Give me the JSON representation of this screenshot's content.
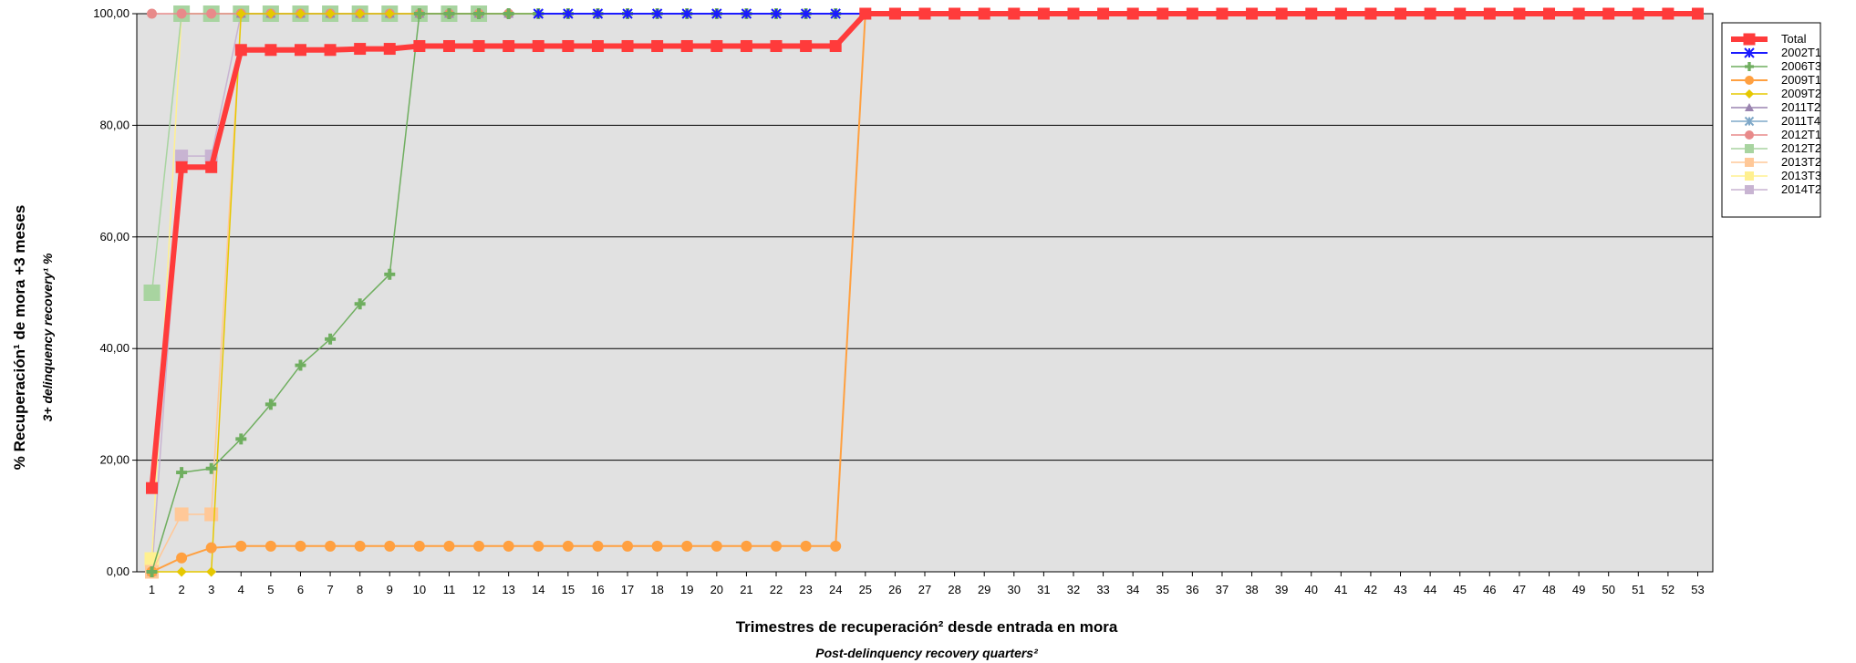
{
  "chart_data": {
    "type": "line",
    "ylabel": "% Recuperación¹ de mora +3 meses",
    "ylabel_secondary": "3+ delinquency recovery¹ %",
    "xlabel": "Trimestres de recuperación² desde entrada en mora",
    "xlabel_secondary": "Post-delinquency recovery quarters²",
    "ylim": [
      0,
      100
    ],
    "yticks": [
      "0,00",
      "20,00",
      "40,00",
      "60,00",
      "80,00",
      "100,00"
    ],
    "x": [
      1,
      2,
      3,
      4,
      5,
      6,
      7,
      8,
      9,
      10,
      11,
      12,
      13,
      14,
      15,
      16,
      17,
      18,
      19,
      20,
      21,
      22,
      23,
      24,
      25,
      26,
      27,
      28,
      29,
      30,
      31,
      32,
      33,
      34,
      35,
      36,
      37,
      38,
      39,
      40,
      41,
      42,
      43,
      44,
      45,
      46,
      47,
      48,
      49,
      50,
      51,
      52,
      53
    ],
    "grid": "horizontal",
    "legend_position": "right",
    "series": [
      {
        "name": "Total",
        "color": "#ff3b3b",
        "marker": "square",
        "width": 6,
        "marker_size": 13,
        "values": [
          15,
          72.5,
          72.5,
          93.5,
          93.5,
          93.5,
          93.5,
          93.7,
          93.7,
          94.2,
          94.2,
          94.2,
          94.2,
          94.2,
          94.2,
          94.2,
          94.2,
          94.2,
          94.2,
          94.2,
          94.2,
          94.2,
          94.2,
          94.2,
          100,
          100,
          100,
          100,
          100,
          100,
          100,
          100,
          100,
          100,
          100,
          100,
          100,
          100,
          100,
          100,
          100,
          100,
          100,
          100,
          100,
          100,
          100,
          100,
          100,
          100,
          100,
          100,
          100
        ]
      },
      {
        "name": "2002T1",
        "color": "#1a1aff",
        "marker": "star",
        "width": 2,
        "marker_size": 10,
        "values": [
          null,
          null,
          null,
          null,
          null,
          null,
          null,
          null,
          null,
          null,
          null,
          null,
          null,
          100,
          100,
          100,
          100,
          100,
          100,
          100,
          100,
          100,
          100,
          100,
          100,
          100,
          100,
          100,
          100,
          100,
          100,
          100,
          100,
          100,
          100,
          100,
          100,
          100,
          100,
          100,
          100,
          100,
          100,
          100,
          100,
          100,
          100,
          100,
          100,
          100,
          100,
          100,
          100
        ]
      },
      {
        "name": "2006T3",
        "color": "#6fae5f",
        "marker": "plus",
        "width": 1.5,
        "marker_size": 12,
        "values": [
          0,
          17.8,
          18.5,
          23.8,
          30,
          37,
          41.7,
          48,
          53.3,
          100,
          100,
          100,
          100,
          100,
          100,
          100,
          100,
          100,
          100,
          100,
          100,
          100,
          100,
          100,
          100,
          100,
          100,
          100,
          100,
          100,
          100,
          100,
          100,
          100,
          100,
          100,
          100,
          100,
          100,
          100,
          100,
          100,
          100,
          100,
          100,
          100,
          100,
          100,
          100,
          100,
          100,
          100,
          100
        ]
      },
      {
        "name": "2009T1",
        "color": "#ffa040",
        "marker": "circle",
        "width": 2,
        "marker_size": 12,
        "values": [
          0,
          2.5,
          4.3,
          4.6,
          4.6,
          4.6,
          4.6,
          4.6,
          4.6,
          4.6,
          4.6,
          4.6,
          4.6,
          4.6,
          4.6,
          4.6,
          4.6,
          4.6,
          4.6,
          4.6,
          4.6,
          4.6,
          4.6,
          4.6,
          100,
          100,
          100,
          100,
          100,
          100,
          100,
          100,
          100,
          100,
          100,
          100,
          100,
          100,
          100,
          100,
          100,
          100,
          100,
          100,
          100,
          100,
          100,
          100,
          100,
          100,
          100,
          100,
          100
        ]
      },
      {
        "name": "2009T2",
        "color": "#e6c800",
        "marker": "diamond",
        "width": 1.5,
        "marker_size": 11,
        "values": [
          0,
          0,
          0,
          100,
          100,
          100,
          100,
          100,
          100,
          100,
          100,
          100,
          100,
          100,
          100,
          100,
          100,
          100,
          100,
          100,
          100,
          100,
          100,
          100,
          100,
          100,
          100,
          100,
          100,
          100,
          100,
          100,
          100,
          100,
          100,
          100,
          100,
          100,
          100,
          100,
          100,
          100,
          100,
          100,
          100,
          100,
          100,
          100,
          100,
          100,
          100,
          100,
          100
        ]
      },
      {
        "name": "2011T2",
        "color": "#9a84b0",
        "marker": "triangle",
        "width": 1.5,
        "marker_size": 11,
        "values": [
          0,
          null,
          null,
          100,
          100,
          100,
          100,
          100,
          100,
          100,
          100,
          100,
          100,
          100,
          100,
          100,
          null,
          null,
          null,
          null,
          null,
          null,
          null,
          null,
          null,
          null,
          null,
          null,
          null,
          null,
          null,
          null,
          null,
          null,
          null,
          null,
          null,
          null,
          null,
          null,
          null,
          null,
          null,
          null,
          null,
          null,
          null,
          null,
          null,
          null,
          null,
          null,
          null
        ]
      },
      {
        "name": "2011T4",
        "color": "#7fa8c8",
        "marker": "star",
        "width": 1.5,
        "marker_size": 9,
        "values": [
          null,
          null,
          null,
          null,
          null,
          null,
          null,
          null,
          null,
          null,
          null,
          null,
          null,
          null,
          null,
          null,
          null,
          null,
          null,
          null,
          null,
          null,
          null,
          null,
          null,
          100,
          100,
          100,
          100,
          100,
          100,
          100,
          100,
          100,
          100,
          null,
          null,
          null,
          null,
          null,
          null,
          null,
          null,
          null,
          null,
          null,
          null,
          null,
          null,
          null,
          null,
          null,
          null
        ]
      },
      {
        "name": "2012T1",
        "color": "#e88a8a",
        "marker": "circle",
        "width": 1.5,
        "marker_size": 11,
        "values": [
          100,
          100,
          100,
          100,
          100,
          100,
          100,
          100,
          100,
          100,
          100,
          100,
          100,
          null,
          null,
          null,
          null,
          null,
          null,
          null,
          null,
          null,
          null,
          null,
          null,
          null,
          null,
          null,
          null,
          null,
          null,
          null,
          null,
          null,
          null,
          null,
          null,
          null,
          null,
          null,
          null,
          null,
          null,
          null,
          null,
          null,
          null,
          null,
          null,
          null,
          null,
          null,
          null
        ]
      },
      {
        "name": "2012T2",
        "color": "#a8d4a0",
        "marker": "square",
        "width": 1.5,
        "marker_size": 18,
        "values": [
          50,
          100,
          100,
          100,
          100,
          100,
          100,
          100,
          100,
          100,
          100,
          100,
          null,
          null,
          null,
          null,
          null,
          null,
          null,
          null,
          null,
          null,
          null,
          null,
          null,
          null,
          null,
          null,
          null,
          null,
          null,
          null,
          null,
          null,
          null,
          null,
          null,
          null,
          null,
          null,
          null,
          null,
          null,
          null,
          null,
          null,
          null,
          null,
          null,
          null,
          null,
          null,
          null
        ]
      },
      {
        "name": "2013T2",
        "color": "#ffc898",
        "marker": "square",
        "width": 1.5,
        "marker_size": 15,
        "values": [
          0,
          10.3,
          10.3,
          100,
          100,
          100,
          100,
          100,
          null,
          null,
          null,
          null,
          null,
          null,
          null,
          null,
          null,
          null,
          null,
          null,
          null,
          null,
          null,
          null,
          null,
          null,
          null,
          null,
          null,
          null,
          null,
          null,
          null,
          null,
          null,
          null,
          null,
          null,
          null,
          null,
          null,
          null,
          null,
          null,
          null,
          null,
          null,
          null,
          null,
          null,
          null,
          null,
          null
        ]
      },
      {
        "name": "2013T3",
        "color": "#fff090",
        "marker": "square",
        "width": 1.5,
        "marker_size": 16,
        "values": [
          2.2,
          100,
          100,
          100,
          100,
          100,
          100,
          null,
          null,
          null,
          null,
          null,
          null,
          null,
          null,
          null,
          null,
          null,
          null,
          null,
          null,
          null,
          null,
          null,
          null,
          null,
          null,
          null,
          null,
          null,
          null,
          null,
          null,
          null,
          null,
          null,
          null,
          null,
          null,
          null,
          null,
          null,
          null,
          null,
          null,
          null,
          null,
          null,
          null,
          null,
          null,
          null,
          null
        ]
      },
      {
        "name": "2014T2",
        "color": "#c8b4d2",
        "marker": "square",
        "width": 1.5,
        "marker_size": 14,
        "values": [
          0,
          74.5,
          74.5,
          100,
          null,
          null,
          null,
          null,
          null,
          null,
          null,
          null,
          null,
          null,
          null,
          null,
          null,
          null,
          null,
          null,
          null,
          null,
          null,
          null,
          null,
          null,
          null,
          null,
          null,
          null,
          null,
          null,
          null,
          null,
          null,
          null,
          null,
          null,
          null,
          null,
          null,
          null,
          null,
          null,
          null,
          null,
          null,
          null,
          null,
          null,
          null,
          null,
          null
        ]
      }
    ]
  }
}
